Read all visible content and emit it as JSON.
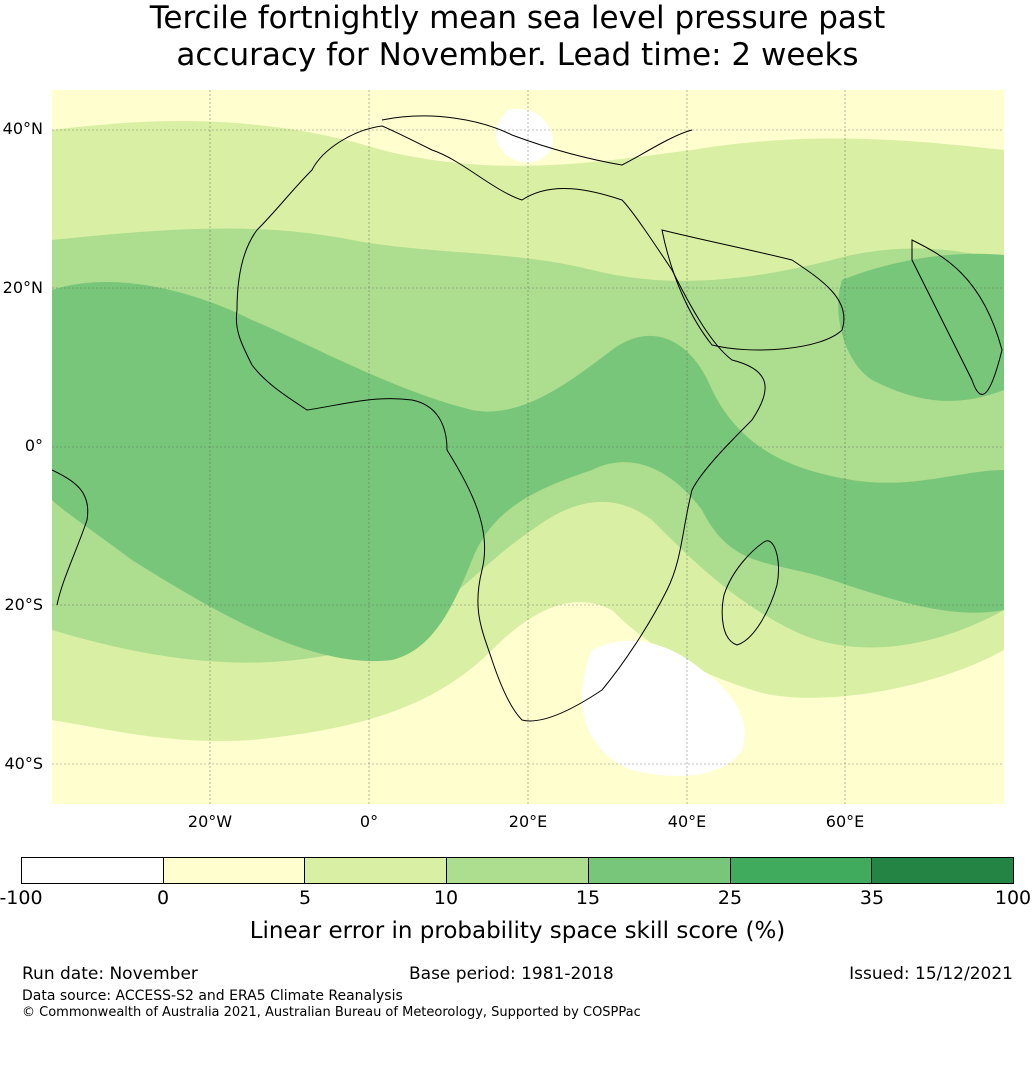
{
  "title": {
    "line1": "Tercile fortnightly mean sea level pressure past",
    "line2": "accuracy for November. Lead time: 2 weeks"
  },
  "map": {
    "lat_labels": [
      "40°N",
      "20°N",
      "0°",
      "20°S",
      "40°S"
    ],
    "lon_labels": [
      "20°W",
      "0°",
      "20°E",
      "40°E",
      "60°E"
    ],
    "gridlines": true,
    "region": "Africa, Middle East and Indian Ocean"
  },
  "colorbar": {
    "ticks": [
      "-100",
      "0",
      "5",
      "10",
      "15",
      "25",
      "35",
      "100"
    ],
    "colors": [
      "#ffffff",
      "#fefecf",
      "#d9efa3",
      "#addd8e",
      "#78c679",
      "#41ab5d",
      "#238443"
    ],
    "label": "Linear error in probability space skill score (%)"
  },
  "footer": {
    "run_date": "Run date: November",
    "base_period": "Base period: 1981-2018",
    "issued": "Issued: 15/12/2021",
    "data_source": "Data source: ACCESS-S2 and ERA5 Climate Reanalysis",
    "copyright": "© Commonwealth of Australia 2021, Australian Bureau of Meteorology, Supported by COSPPac"
  }
}
